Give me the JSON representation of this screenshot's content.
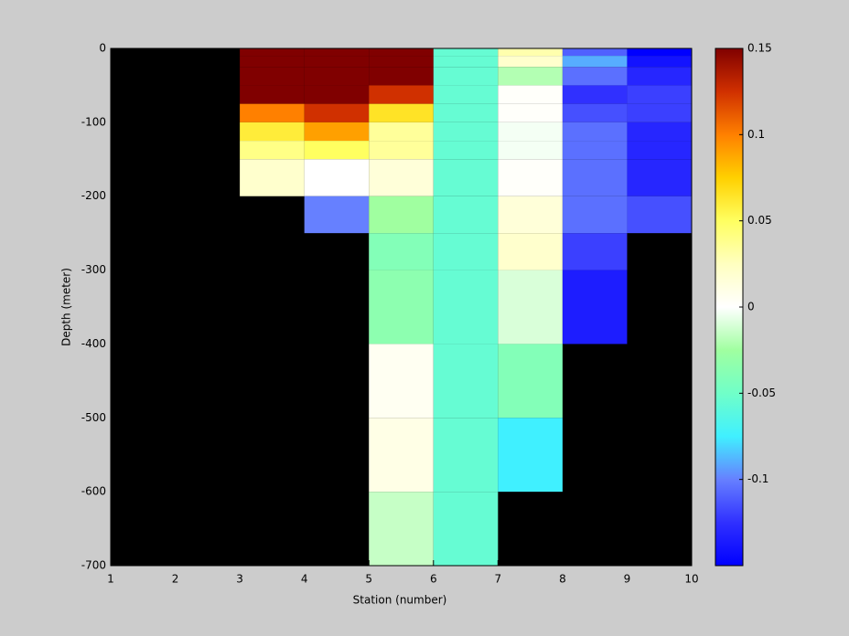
{
  "chart_data": {
    "type": "heatmap",
    "xlabel": "Station (number)",
    "ylabel": "Depth (meter)",
    "x": [
      1,
      2,
      3,
      4,
      5,
      6,
      7,
      8,
      9,
      10
    ],
    "y": [
      0,
      -10,
      -25,
      -50,
      -75,
      -100,
      -125,
      -150,
      -200,
      -250,
      -300,
      -400,
      -500,
      -600,
      -700
    ],
    "values": [
      [
        null,
        null,
        0.15,
        0.15,
        0.15,
        -0.055,
        0.03,
        -0.11,
        -0.15
      ],
      [
        null,
        null,
        0.15,
        0.15,
        0.15,
        -0.055,
        0.02,
        -0.09,
        -0.14
      ],
      [
        null,
        null,
        0.15,
        0.15,
        0.15,
        -0.055,
        -0.02,
        -0.105,
        -0.13
      ],
      [
        null,
        null,
        0.15,
        0.15,
        0.125,
        -0.055,
        0.002,
        -0.125,
        -0.12
      ],
      [
        null,
        null,
        0.1,
        0.125,
        0.065,
        -0.055,
        0.002,
        -0.115,
        -0.12
      ],
      [
        null,
        null,
        0.06,
        0.09,
        0.035,
        -0.055,
        -0.003,
        -0.105,
        -0.13
      ],
      [
        null,
        null,
        0.04,
        0.05,
        0.035,
        -0.055,
        -0.003,
        -0.105,
        -0.13
      ],
      [
        null,
        null,
        0.02,
        0.0,
        0.015,
        -0.055,
        0.002,
        -0.105,
        -0.13
      ],
      [
        null,
        null,
        null,
        -0.1,
        -0.025,
        -0.055,
        0.015,
        -0.105,
        -0.115
      ],
      [
        null,
        null,
        null,
        null,
        -0.04,
        -0.055,
        0.02,
        -0.12,
        null
      ],
      [
        null,
        null,
        null,
        null,
        -0.035,
        -0.055,
        -0.01,
        -0.135,
        null
      ],
      [
        null,
        null,
        null,
        null,
        0.005,
        -0.055,
        -0.04,
        null,
        null
      ],
      [
        null,
        null,
        null,
        null,
        0.01,
        -0.055,
        -0.075,
        null,
        null
      ],
      [
        null,
        null,
        null,
        null,
        -0.015,
        -0.055,
        null,
        null,
        null
      ]
    ],
    "xlim": [
      1,
      10
    ],
    "xticks": [
      1,
      2,
      3,
      4,
      5,
      6,
      7,
      8,
      9,
      10
    ],
    "ylim": [
      -700,
      0
    ],
    "yticks": [
      -700,
      -600,
      -500,
      -400,
      -300,
      -200,
      -100,
      0
    ],
    "clim": [
      -0.15,
      0.15
    ],
    "cticks": [
      -0.1,
      -0.05,
      0,
      0.05,
      0.1,
      0.15
    ],
    "background": "#000000",
    "colormap": [
      "#0000ff",
      "#3030ff",
      "#6680ff",
      "#40f0ff",
      "#70ffc8",
      "#a0ffa0",
      "#ffffff",
      "#ffffc0",
      "#ffff60",
      "#ffd000",
      "#ff8000",
      "#d03000",
      "#800000"
    ]
  }
}
